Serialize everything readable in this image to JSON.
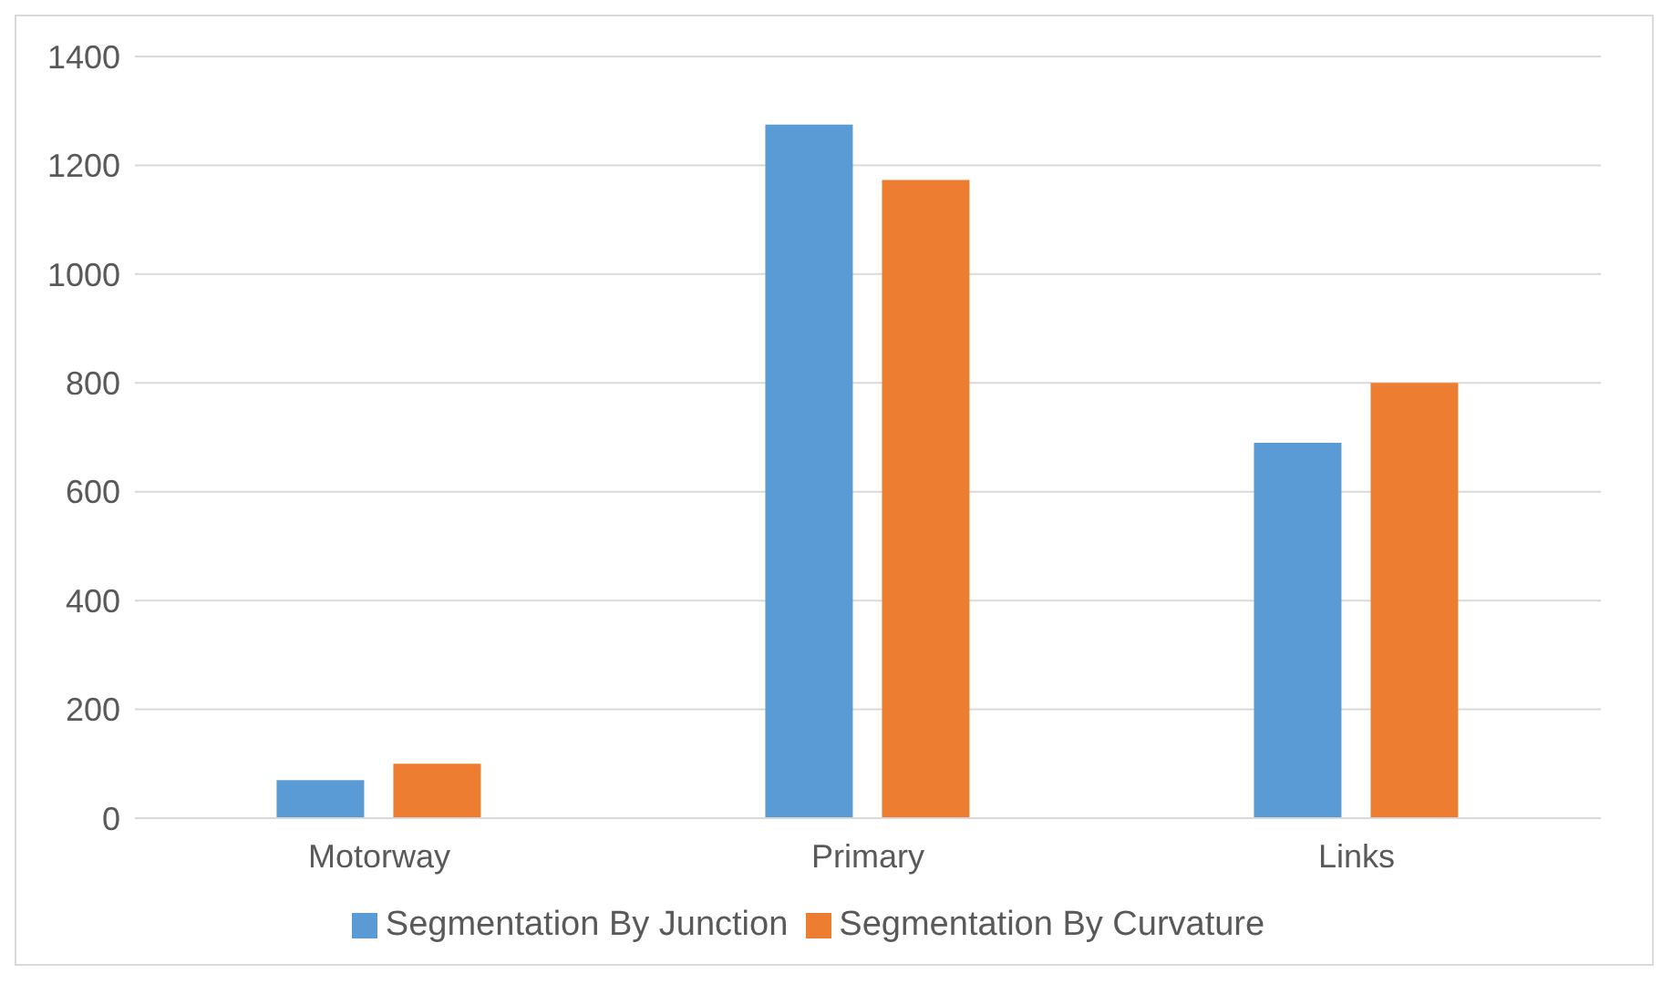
{
  "chart_data": {
    "type": "bar",
    "categories": [
      "Motorway",
      "Primary",
      "Links"
    ],
    "series": [
      {
        "name": "Segmentation By Junction",
        "color": "#5b9bd5",
        "values": [
          70,
          1275,
          690
        ]
      },
      {
        "name": "Segmentation By Curvature",
        "color": "#ed7d31",
        "values": [
          100,
          1173,
          800
        ]
      }
    ],
    "ylim": [
      0,
      1400
    ],
    "yticks": [
      0,
      200,
      400,
      600,
      800,
      1000,
      1200,
      1400
    ],
    "grid": "y",
    "legend": "bottom"
  }
}
